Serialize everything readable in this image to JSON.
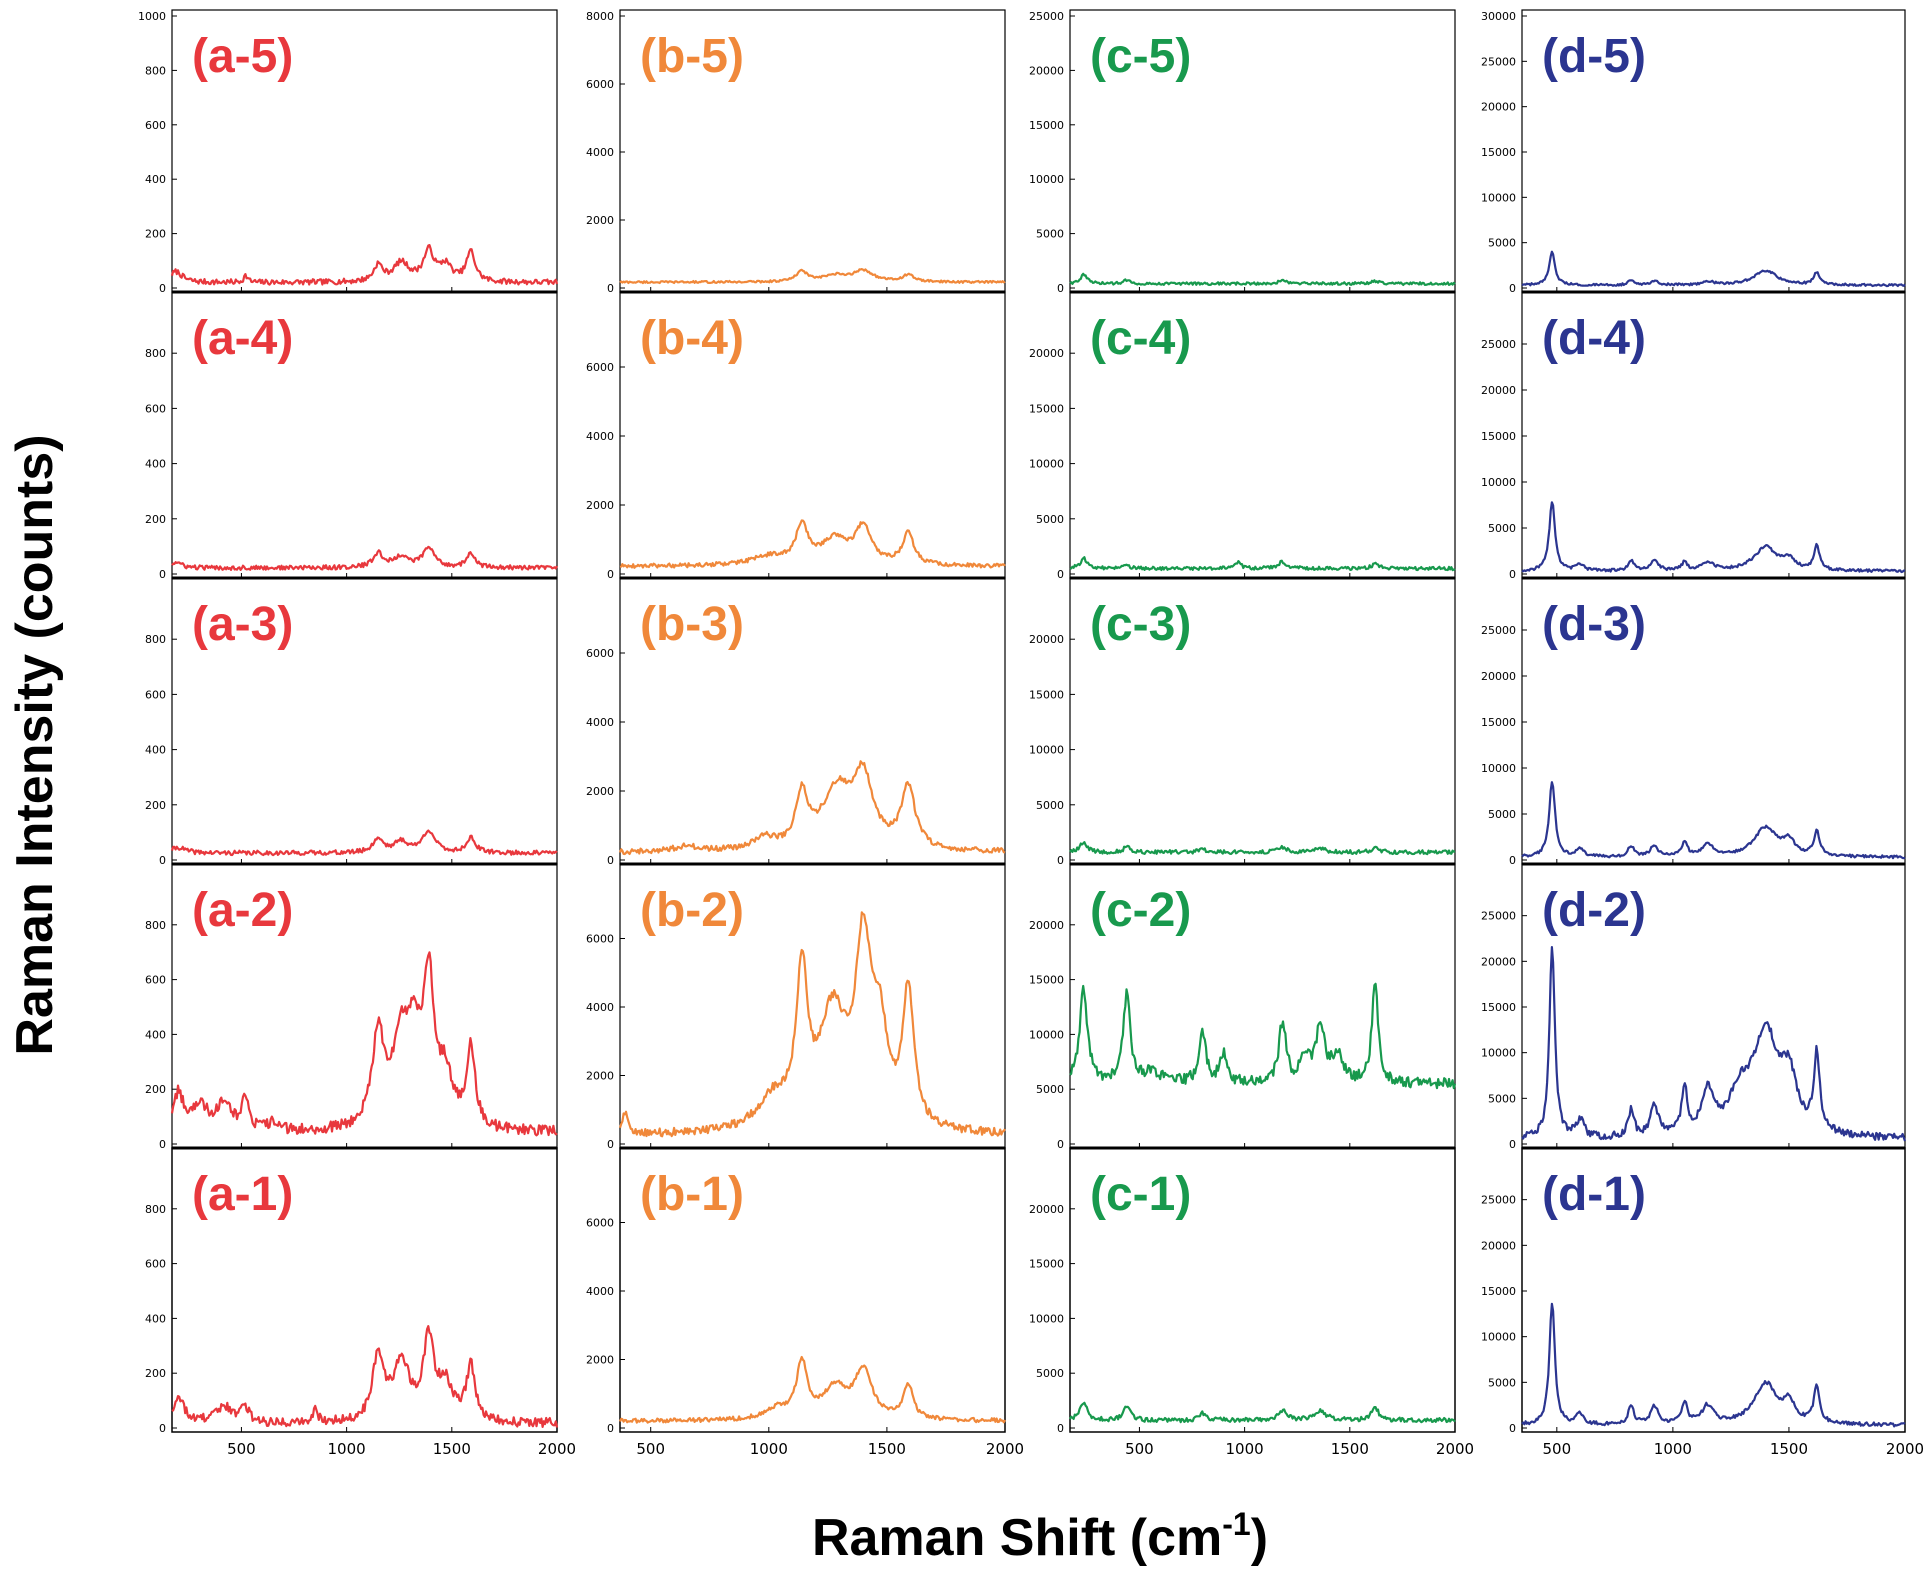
{
  "figure": {
    "ylabel": "Raman Intensity (counts)",
    "xlabel_main": "Raman Shift (cm",
    "xlabel_sup": "-1",
    "xlabel_close": ")"
  },
  "chart_data": [
    {
      "type": "line",
      "column": "a",
      "color": "#e8383d",
      "xlim": [
        170,
        2000
      ],
      "x_ticks": [
        500,
        1000,
        1500,
        2000
      ],
      "ylim": [
        0,
        1000
      ],
      "y_ticks_top": [
        0,
        200,
        400,
        600,
        800,
        1000
      ],
      "y_ticks": [
        0,
        200,
        400,
        600,
        800
      ],
      "panels": [
        {
          "label": "(a-5)",
          "baseline": 20,
          "noise": 10,
          "peaks": [
            [
              190,
              40,
              35
            ],
            [
              520,
              25,
              12
            ],
            [
              1150,
              60,
              25
            ],
            [
              1260,
              70,
              45
            ],
            [
              1390,
              110,
              30
            ],
            [
              1470,
              60,
              35
            ],
            [
              1590,
              110,
              25
            ]
          ]
        },
        {
          "label": "(a-4)",
          "baseline": 22,
          "noise": 8,
          "peaks": [
            [
              190,
              20,
              30
            ],
            [
              1150,
              50,
              30
            ],
            [
              1260,
              40,
              40
            ],
            [
              1390,
              70,
              35
            ],
            [
              1590,
              50,
              25
            ]
          ]
        },
        {
          "label": "(a-3)",
          "baseline": 25,
          "noise": 8,
          "peaks": [
            [
              200,
              20,
              40
            ],
            [
              1150,
              50,
              30
            ],
            [
              1260,
              40,
              40
            ],
            [
              1390,
              80,
              35
            ],
            [
              1590,
              55,
              25
            ]
          ]
        },
        {
          "label": "(a-2)",
          "baseline": 40,
          "noise": 20,
          "peaks": [
            [
              200,
              130,
              30
            ],
            [
              300,
              90,
              50
            ],
            [
              420,
              110,
              40
            ],
            [
              520,
              120,
              20
            ],
            [
              650,
              30,
              30
            ],
            [
              1150,
              330,
              35
            ],
            [
              1260,
              300,
              50
            ],
            [
              1320,
              250,
              40
            ],
            [
              1390,
              520,
              30
            ],
            [
              1470,
              180,
              40
            ],
            [
              1590,
              290,
              25
            ]
          ]
        },
        {
          "label": "(a-1)",
          "baseline": 15,
          "noise": 18,
          "peaks": [
            [
              200,
              90,
              35
            ],
            [
              420,
              60,
              50
            ],
            [
              520,
              50,
              25
            ],
            [
              850,
              40,
              20
            ],
            [
              1150,
              240,
              30
            ],
            [
              1260,
              210,
              50
            ],
            [
              1390,
              290,
              30
            ],
            [
              1470,
              130,
              40
            ],
            [
              1590,
              200,
              25
            ]
          ]
        }
      ]
    },
    {
      "type": "line",
      "column": "b",
      "color": "#f0883a",
      "xlim": [
        370,
        2000
      ],
      "x_ticks": [
        500,
        1000,
        1500,
        2000
      ],
      "ylim": [
        0,
        8000
      ],
      "y_ticks_top": [
        0,
        2000,
        4000,
        6000,
        8000
      ],
      "y_ticks": [
        0,
        2000,
        4000,
        6000
      ],
      "panels": [
        {
          "label": "(b-5)",
          "baseline": 170,
          "noise": 30,
          "peaks": [
            [
              1140,
              300,
              30
            ],
            [
              1280,
              180,
              60
            ],
            [
              1400,
              330,
              50
            ],
            [
              1590,
              200,
              30
            ]
          ]
        },
        {
          "label": "(b-4)",
          "baseline": 220,
          "noise": 60,
          "peaks": [
            [
              1000,
              250,
              90
            ],
            [
              1140,
              1100,
              30
            ],
            [
              1280,
              750,
              70
            ],
            [
              1400,
              1050,
              40
            ],
            [
              1590,
              900,
              30
            ]
          ]
        },
        {
          "label": "(b-3)",
          "baseline": 220,
          "noise": 80,
          "peaks": [
            [
              650,
              150,
              60
            ],
            [
              980,
              350,
              50
            ],
            [
              1140,
              1500,
              30
            ],
            [
              1290,
              1700,
              80
            ],
            [
              1400,
              1900,
              50
            ],
            [
              1590,
              1800,
              35
            ]
          ]
        },
        {
          "label": "(b-2)",
          "baseline": 250,
          "noise": 120,
          "peaks": [
            [
              390,
              600,
              15
            ],
            [
              1020,
              900,
              80
            ],
            [
              1140,
              4300,
              28
            ],
            [
              1270,
              3300,
              70
            ],
            [
              1400,
              5000,
              40
            ],
            [
              1470,
              2500,
              40
            ],
            [
              1590,
              4000,
              28
            ]
          ]
        },
        {
          "label": "(b-1)",
          "baseline": 200,
          "noise": 60,
          "peaks": [
            [
              1030,
              300,
              60
            ],
            [
              1140,
              1600,
              28
            ],
            [
              1280,
              900,
              60
            ],
            [
              1400,
              1400,
              45
            ],
            [
              1590,
              1000,
              25
            ]
          ]
        }
      ]
    },
    {
      "type": "line",
      "column": "c",
      "color": "#18994d",
      "xlim": [
        170,
        2000
      ],
      "x_ticks": [
        500,
        1000,
        1500,
        2000
      ],
      "ylim": [
        0,
        25000
      ],
      "y_ticks_top": [
        0,
        5000,
        10000,
        15000,
        20000,
        25000
      ],
      "y_ticks": [
        0,
        5000,
        10000,
        15000,
        20000
      ],
      "panels": [
        {
          "label": "(c-5)",
          "baseline": 400,
          "noise": 120,
          "peaks": [
            [
              235,
              800,
              20
            ],
            [
              440,
              350,
              15
            ],
            [
              1180,
              250,
              25
            ],
            [
              1620,
              250,
              20
            ]
          ]
        },
        {
          "label": "(c-4)",
          "baseline": 500,
          "noise": 150,
          "peaks": [
            [
              235,
              900,
              20
            ],
            [
              440,
              300,
              15
            ],
            [
              970,
              600,
              15
            ],
            [
              1180,
              600,
              25
            ],
            [
              1620,
              400,
              20
            ]
          ]
        },
        {
          "label": "(c-3)",
          "baseline": 700,
          "noise": 180,
          "peaks": [
            [
              235,
              900,
              20
            ],
            [
              440,
              600,
              15
            ],
            [
              800,
              300,
              20
            ],
            [
              1180,
              400,
              25
            ],
            [
              1360,
              300,
              30
            ],
            [
              1620,
              400,
              20
            ]
          ]
        },
        {
          "label": "(c-2)",
          "baseline": 5500,
          "noise": 500,
          "peaks": [
            [
              235,
              8500,
              22
            ],
            [
              440,
              8000,
              20
            ],
            [
              560,
              1000,
              50
            ],
            [
              800,
              4500,
              20
            ],
            [
              900,
              2500,
              20
            ],
            [
              1180,
              5500,
              20
            ],
            [
              1290,
              2500,
              25
            ],
            [
              1360,
              5000,
              25
            ],
            [
              1440,
              2500,
              30
            ],
            [
              1620,
              9000,
              18
            ]
          ]
        },
        {
          "label": "(c-1)",
          "baseline": 700,
          "noise": 200,
          "peaks": [
            [
              235,
              1500,
              22
            ],
            [
              440,
              1200,
              20
            ],
            [
              800,
              600,
              20
            ],
            [
              1180,
              900,
              25
            ],
            [
              1360,
              800,
              35
            ],
            [
              1620,
              1200,
              20
            ]
          ]
        }
      ]
    },
    {
      "type": "line",
      "column": "d",
      "color": "#2b3590",
      "xlim": [
        350,
        2000
      ],
      "x_ticks": [
        500,
        1000,
        1500,
        2000
      ],
      "ylim": [
        0,
        30000
      ],
      "y_ticks_top": [
        0,
        5000,
        10000,
        15000,
        20000,
        25000,
        30000
      ],
      "y_ticks": [
        0,
        5000,
        10000,
        15000,
        20000,
        25000
      ],
      "panels": [
        {
          "label": "(d-5)",
          "baseline": 300,
          "noise": 120,
          "peaks": [
            [
              480,
              3600,
              15
            ],
            [
              820,
              500,
              15
            ],
            [
              920,
              500,
              20
            ],
            [
              1150,
              400,
              30
            ],
            [
              1400,
              1600,
              60
            ],
            [
              1620,
              1400,
              15
            ]
          ]
        },
        {
          "label": "(d-4)",
          "baseline": 300,
          "noise": 150,
          "peaks": [
            [
              480,
              7500,
              15
            ],
            [
              600,
              700,
              20
            ],
            [
              820,
              1100,
              15
            ],
            [
              920,
              1200,
              20
            ],
            [
              1050,
              900,
              15
            ],
            [
              1150,
              900,
              30
            ],
            [
              1400,
              2600,
              60
            ],
            [
              1500,
              1000,
              30
            ],
            [
              1620,
              2600,
              15
            ]
          ]
        },
        {
          "label": "(d-3)",
          "baseline": 300,
          "noise": 150,
          "peaks": [
            [
              480,
              8300,
              15
            ],
            [
              600,
              900,
              20
            ],
            [
              820,
              1200,
              15
            ],
            [
              920,
              1200,
              20
            ],
            [
              1050,
              1500,
              15
            ],
            [
              1150,
              1300,
              30
            ],
            [
              1400,
              3200,
              60
            ],
            [
              1500,
              1500,
              30
            ],
            [
              1620,
              2600,
              15
            ]
          ]
        },
        {
          "label": "(d-2)",
          "baseline": 500,
          "noise": 400,
          "peaks": [
            [
              480,
              21000,
              14
            ],
            [
              600,
              2000,
              20
            ],
            [
              820,
              3000,
              15
            ],
            [
              920,
              3500,
              20
            ],
            [
              1050,
              5000,
              15
            ],
            [
              1150,
              4500,
              30
            ],
            [
              1290,
              4000,
              60
            ],
            [
              1400,
              11000,
              65
            ],
            [
              1500,
              5500,
              40
            ],
            [
              1620,
              8500,
              15
            ]
          ]
        },
        {
          "label": "(d-1)",
          "baseline": 300,
          "noise": 200,
          "peaks": [
            [
              480,
              13500,
              14
            ],
            [
              600,
              1200,
              20
            ],
            [
              820,
              2000,
              15
            ],
            [
              920,
              2000,
              20
            ],
            [
              1050,
              2300,
              15
            ],
            [
              1150,
              2000,
              30
            ],
            [
              1400,
              4500,
              60
            ],
            [
              1500,
              2000,
              30
            ],
            [
              1620,
              4000,
              15
            ]
          ]
        }
      ]
    }
  ]
}
